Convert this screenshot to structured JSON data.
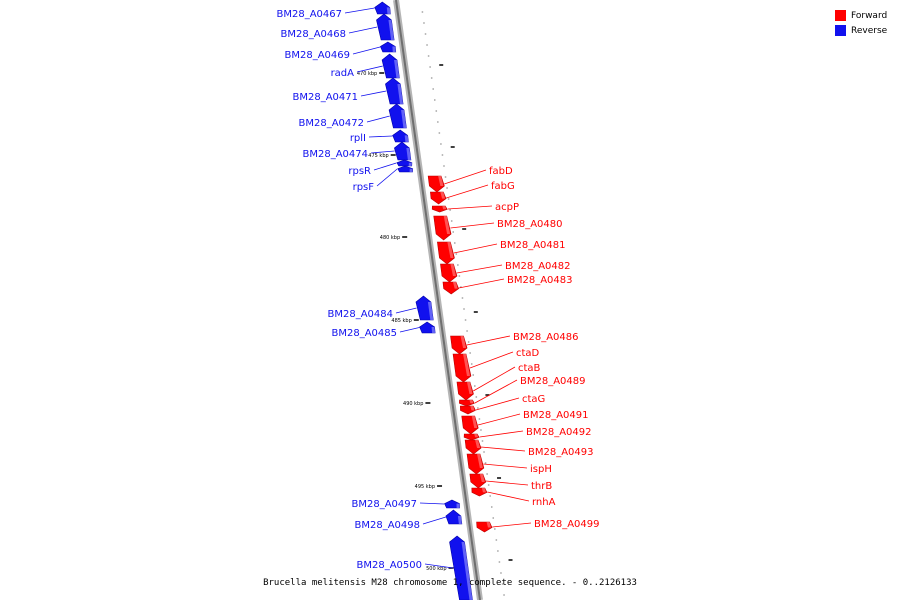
{
  "legend": {
    "forward_label": "Forward",
    "reverse_label": "Reverse",
    "forward_color": "#ff0000",
    "reverse_color": "#1111ee"
  },
  "caption": "Brucella melitensis M28 chromosome 1, complete sequence. - 0..2126133",
  "kbp_labels": [
    "470 kbp",
    "475 kbp",
    "480 kbp",
    "485 kbp",
    "490 kbp",
    "495 kbp",
    "500 kbp"
  ],
  "genes_reverse": [
    "BM28_A0467",
    "BM28_A0468",
    "BM28_A0469",
    "radA",
    "BM28_A0471",
    "BM28_A0472",
    "rplI",
    "BM28_A0474",
    "rpsR",
    "rpsF",
    "BM28_A0484",
    "BM28_A0485",
    "BM28_A0497",
    "BM28_A0498",
    "BM28_A0500"
  ],
  "genes_forward": [
    "fabD",
    "fabG",
    "acpP",
    "BM28_A0480",
    "BM28_A0481",
    "BM28_A0482",
    "BM28_A0483",
    "BM28_A0486",
    "ctaD",
    "ctaB",
    "BM28_A0489",
    "ctaG",
    "BM28_A0491",
    "BM28_A0492",
    "BM28_A0493",
    "ispH",
    "thrB",
    "rnhA",
    "BM28_A0499"
  ]
}
